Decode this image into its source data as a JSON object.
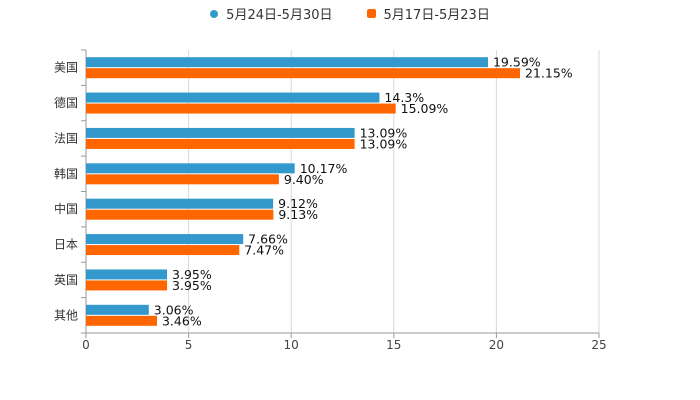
{
  "chart_data": {
    "type": "bar",
    "orientation": "horizontal",
    "categories": [
      "美国",
      "德国",
      "法国",
      "韩国",
      "中国",
      "日本",
      "英国",
      "其他"
    ],
    "series": [
      {
        "name": "5月24日-5月30日",
        "color": "#3399cc",
        "values": [
          19.59,
          14.3,
          13.09,
          10.17,
          9.12,
          7.66,
          3.95,
          3.06
        ],
        "labels": [
          "19.59%",
          "14.3%",
          "13.09%",
          "10.17%",
          "9.12%",
          "7.66%",
          "3.95%",
          "3.06%"
        ]
      },
      {
        "name": "5月17日-5月23日",
        "color": "#ff6600",
        "values": [
          21.15,
          15.09,
          13.09,
          9.4,
          9.13,
          7.47,
          3.95,
          3.46
        ],
        "labels": [
          "21.15%",
          "15.09%",
          "13.09%",
          "9.40%",
          "9.13%",
          "7.47%",
          "3.95%",
          "3.46%"
        ]
      }
    ],
    "xlim": [
      0,
      25
    ],
    "xticks": [
      0,
      5,
      10,
      15,
      20,
      25
    ],
    "xtick_labels": [
      "0",
      "5",
      "10",
      "15",
      "20",
      "25"
    ],
    "grid": true,
    "legend_position": "top-center"
  }
}
